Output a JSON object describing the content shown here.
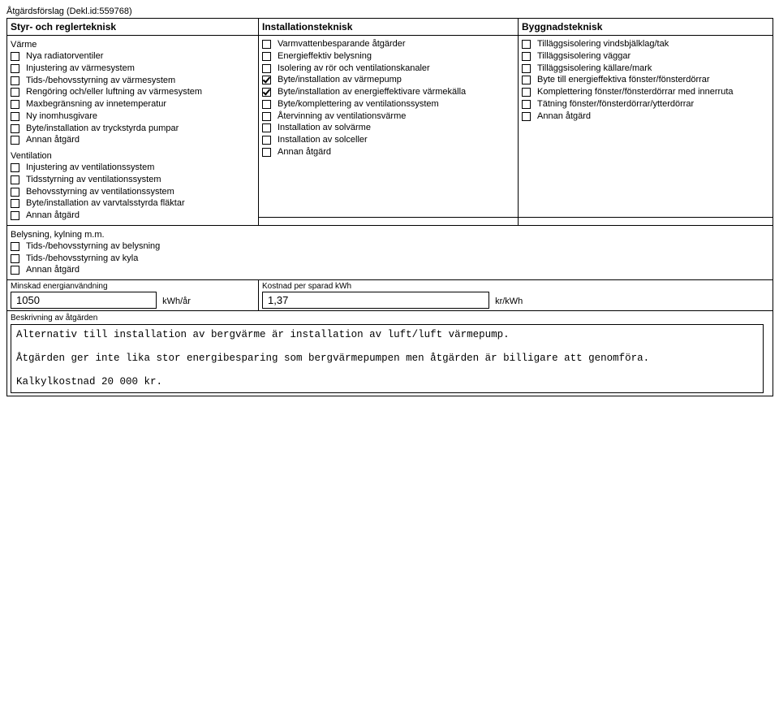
{
  "header": "Åtgärdsförslag (Dekl.id:559768)",
  "columns": {
    "left_head": "Styr- och reglerteknisk",
    "mid_head": "Installationsteknisk",
    "right_head": "Byggnadsteknisk"
  },
  "left": {
    "sect_varme": "Värme",
    "items_varme": [
      {
        "label": "Nya radiatorventiler",
        "checked": false
      },
      {
        "label": "Injustering av värmesystem",
        "checked": false
      },
      {
        "label": "Tids-/behovsstyrning av värmesystem",
        "checked": false
      },
      {
        "label": "Rengöring och/eller luftning av värmesystem",
        "checked": false
      },
      {
        "label": "Maxbegränsning av innetemperatur",
        "checked": false
      },
      {
        "label": "Ny inomhusgivare",
        "checked": false
      },
      {
        "label": "Byte/installation av tryckstyrda pumpar",
        "checked": false
      },
      {
        "label": "Annan åtgärd",
        "checked": false
      }
    ],
    "sect_vent": "Ventilation",
    "items_vent": [
      {
        "label": "Injustering av ventilationssystem",
        "checked": false
      },
      {
        "label": "Tidsstyrning av ventilationssystem",
        "checked": false
      },
      {
        "label": "Behovsstyrning av ventilationssystem",
        "checked": false
      },
      {
        "label": "Byte/installation av varvtalsstyrda fläktar",
        "checked": false
      },
      {
        "label": "Annan åtgärd",
        "checked": false
      }
    ],
    "sect_bel": "Belysning, kylning m.m.",
    "items_bel": [
      {
        "label": "Tids-/behovsstyrning av belysning",
        "checked": false
      },
      {
        "label": "Tids-/behovsstyrning av kyla",
        "checked": false
      },
      {
        "label": "Annan åtgärd",
        "checked": false
      }
    ]
  },
  "mid": {
    "items": [
      {
        "label": "Varmvattenbesparande åtgärder",
        "checked": false
      },
      {
        "label": "Energieffektiv belysning",
        "checked": false
      },
      {
        "label": "Isolering av rör och ventilationskanaler",
        "checked": false
      },
      {
        "label": "Byte/installation av värmepump",
        "checked": true
      },
      {
        "label": "Byte/installation av energieffektivare värmekälla",
        "checked": true
      },
      {
        "label": "Byte/komplettering av ventilationssystem",
        "checked": false
      },
      {
        "label": "Återvinning av ventilationsvärme",
        "checked": false
      },
      {
        "label": "Installation av solvärme",
        "checked": false
      },
      {
        "label": "Installation av solceller",
        "checked": false
      },
      {
        "label": "Annan åtgärd",
        "checked": false
      }
    ]
  },
  "right": {
    "items": [
      {
        "label": "Tilläggsisolering vindsbjälklag/tak",
        "checked": false
      },
      {
        "label": "Tilläggsisolering väggar",
        "checked": false
      },
      {
        "label": "Tilläggsisolering källare/mark",
        "checked": false
      },
      {
        "label": "Byte till energieffektiva fönster/fönsterdörrar",
        "checked": false
      },
      {
        "label": "Komplettering fönster/fönsterdörrar med innerruta",
        "checked": false
      },
      {
        "label": "Tätning fönster/fönsterdörrar/ytterdörrar",
        "checked": false
      },
      {
        "label": "Annan åtgärd",
        "checked": false
      }
    ]
  },
  "numbers": {
    "minskad_label": "Minskad energianvändning",
    "minskad_value": "1050",
    "minskad_unit": "kWh/år",
    "kostnad_label": "Kostnad per sparad kWh",
    "kostnad_value": "1,37",
    "kostnad_unit": "kr/kWh"
  },
  "desc": {
    "label": "Beskrivning av åtgärden",
    "p1": "Alternativ till installation av bergvärme är installation av luft/luft värmepump.",
    "p2": "Åtgärden ger inte lika stor energibesparing som bergvärmepumpen men åtgärden är billigare att genomföra.",
    "p3": "Kalkylkostnad 20 000 kr."
  }
}
